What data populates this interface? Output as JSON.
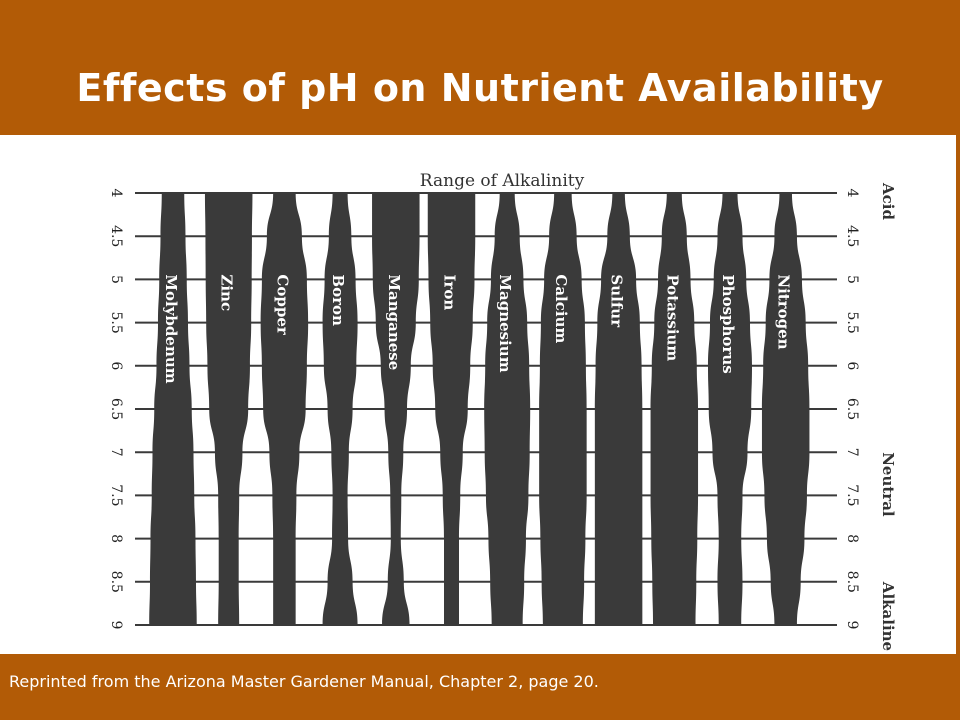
{
  "slide": {
    "title": "Effects of pH on Nutrient Availability",
    "caption": "Reprinted from the Arizona Master Gardener Manual, Chapter 2, page 20."
  },
  "colors": {
    "brand": "#b25b06",
    "band": "#3a3a3a",
    "grid": "#3a3a3a",
    "text": "#ffffff"
  },
  "chart_data": {
    "type": "band-width availability chart",
    "title": "Range of Alkalinity",
    "ph_ticks": [
      "4",
      "4.5",
      "5",
      "5.5",
      "6",
      "6.5",
      "7",
      "7.5",
      "8",
      "8.5",
      "9"
    ],
    "ph_values": [
      4,
      4.5,
      5,
      5.5,
      6,
      6.5,
      7,
      7.5,
      8,
      8.5,
      9
    ],
    "ylim": [
      4,
      9
    ],
    "zones": [
      {
        "label": "Acid",
        "ph": 4
      },
      {
        "label": "Neutral",
        "ph": 7
      },
      {
        "label": "Alkaline",
        "ph": 8.5
      }
    ],
    "value_meaning": "relative availability (band width), 0-1",
    "series": [
      {
        "name": "Molybdenum",
        "values": [
          0.45,
          0.5,
          0.55,
          0.6,
          0.66,
          0.75,
          0.82,
          0.85,
          0.9,
          0.92,
          0.95
        ]
      },
      {
        "name": "Zinc",
        "values": [
          0.95,
          0.93,
          0.92,
          0.9,
          0.85,
          0.78,
          0.55,
          0.42,
          0.4,
          0.4,
          0.42
        ]
      },
      {
        "name": "Copper",
        "values": [
          0.45,
          0.7,
          0.9,
          0.95,
          0.9,
          0.85,
          0.6,
          0.48,
          0.45,
          0.45,
          0.45
        ]
      },
      {
        "name": "Boron",
        "values": [
          0.3,
          0.45,
          0.62,
          0.7,
          0.65,
          0.5,
          0.35,
          0.3,
          0.32,
          0.5,
          0.7
        ]
      },
      {
        "name": "Manganese",
        "values": [
          0.95,
          0.95,
          0.92,
          0.8,
          0.6,
          0.45,
          0.3,
          0.22,
          0.2,
          0.32,
          0.55
        ]
      },
      {
        "name": "Iron",
        "values": [
          0.95,
          0.95,
          0.92,
          0.85,
          0.75,
          0.65,
          0.45,
          0.35,
          0.3,
          0.3,
          0.3
        ]
      },
      {
        "name": "Magnesium",
        "values": [
          0.3,
          0.5,
          0.65,
          0.8,
          0.88,
          0.92,
          0.9,
          0.85,
          0.75,
          0.68,
          0.62
        ]
      },
      {
        "name": "Calcium",
        "values": [
          0.35,
          0.55,
          0.75,
          0.88,
          0.92,
          0.95,
          0.95,
          0.95,
          0.9,
          0.85,
          0.8
        ]
      },
      {
        "name": "Sulfur",
        "values": [
          0.25,
          0.45,
          0.7,
          0.85,
          0.92,
          0.95,
          0.95,
          0.95,
          0.95,
          0.95,
          0.95
        ]
      },
      {
        "name": "Potassium",
        "values": [
          0.3,
          0.5,
          0.65,
          0.8,
          0.9,
          0.95,
          0.95,
          0.95,
          0.92,
          0.88,
          0.85
        ]
      },
      {
        "name": "Phosphorus",
        "values": [
          0.3,
          0.5,
          0.65,
          0.8,
          0.88,
          0.85,
          0.7,
          0.5,
          0.45,
          0.5,
          0.45
        ]
      },
      {
        "name": "Nitrogen",
        "values": [
          0.25,
          0.45,
          0.65,
          0.8,
          0.9,
          0.95,
          0.95,
          0.85,
          0.75,
          0.6,
          0.45
        ]
      }
    ]
  }
}
